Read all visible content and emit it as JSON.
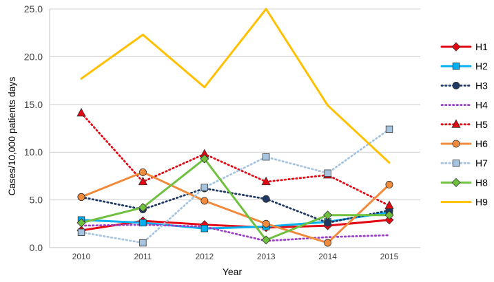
{
  "chart_data": {
    "type": "line",
    "title": "",
    "xlabel": "Year",
    "ylabel": "Cases/10,000 patients days",
    "categories": [
      "2010",
      "2011",
      "2012",
      "2013",
      "2014",
      "2015"
    ],
    "ylim": [
      0,
      25
    ],
    "yticks": [
      "0.0",
      "5.0",
      "10.0",
      "15.0",
      "20.0",
      "25.0"
    ],
    "grid": "horizontal",
    "legend_position": "right",
    "series": [
      {
        "name": "H1",
        "values": [
          1.8,
          2.8,
          2.4,
          2.1,
          2.3,
          2.9
        ],
        "color": "#e30613",
        "dash": "solid",
        "marker": "diamond"
      },
      {
        "name": "H2",
        "values": [
          2.9,
          2.6,
          2.0,
          2.2,
          2.7,
          3.7
        ],
        "color": "#00b0f0",
        "dash": "solid",
        "marker": "square"
      },
      {
        "name": "H3",
        "values": [
          5.3,
          4.0,
          6.2,
          5.1,
          2.6,
          3.9
        ],
        "color": "#1f3864",
        "dash": "dotted",
        "marker": "circle"
      },
      {
        "name": "H4",
        "values": [
          2.3,
          2.4,
          2.2,
          0.7,
          1.1,
          1.3
        ],
        "color": "#9b3fc7",
        "dash": "dotted",
        "marker": "none"
      },
      {
        "name": "H5",
        "values": [
          14.1,
          6.9,
          9.8,
          6.9,
          7.6,
          4.4
        ],
        "color": "#e30613",
        "dash": "dotted",
        "marker": "triangle"
      },
      {
        "name": "H6",
        "values": [
          5.3,
          7.9,
          4.9,
          2.5,
          0.5,
          6.6
        ],
        "color": "#f08a3c",
        "dash": "solid",
        "marker": "circle"
      },
      {
        "name": "H7",
        "values": [
          1.6,
          0.5,
          6.3,
          9.5,
          7.8,
          12.4
        ],
        "color": "#a6c4e0",
        "dash": "dotted",
        "marker": "square"
      },
      {
        "name": "H8",
        "values": [
          2.6,
          4.2,
          9.3,
          0.8,
          3.4,
          3.4
        ],
        "color": "#70c040",
        "dash": "solid",
        "marker": "diamond"
      },
      {
        "name": "H9",
        "values": [
          17.7,
          22.3,
          16.8,
          25.0,
          14.9,
          8.9
        ],
        "color": "#ffc000",
        "dash": "solid",
        "marker": "none"
      }
    ]
  }
}
